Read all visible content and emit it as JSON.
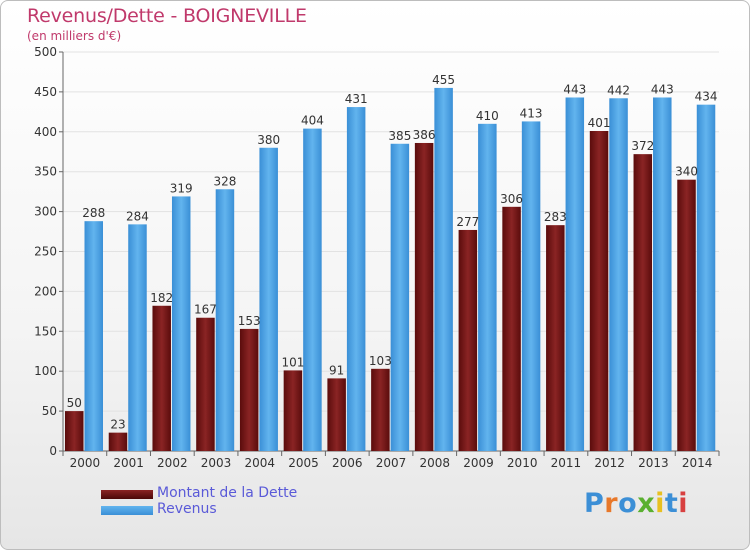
{
  "header": {
    "title": "Revenus/Dette - BOIGNEVILLE",
    "subtitle": "(en milliers d'€)"
  },
  "legend": {
    "items": [
      {
        "label": "Montant de la Dette",
        "color": "#7a1a1a"
      },
      {
        "label": "Revenus",
        "color": "#4aa3e6"
      }
    ]
  },
  "logo": {
    "letters": [
      "P",
      "r",
      "o",
      "x",
      "i",
      "t",
      "i"
    ],
    "colors": [
      "#3c8fd6",
      "#e8782a",
      "#3c8fd6",
      "#5ab030",
      "#e8c020",
      "#3c8fd6",
      "#d84040"
    ]
  },
  "chart_data": {
    "type": "bar",
    "categories": [
      "2000",
      "2001",
      "2002",
      "2003",
      "2004",
      "2005",
      "2006",
      "2007",
      "2008",
      "2009",
      "2010",
      "2011",
      "2012",
      "2013",
      "2014"
    ],
    "series": [
      {
        "name": "Montant de la Dette",
        "values": [
          50,
          23,
          182,
          167,
          153,
          101,
          91,
          103,
          386,
          277,
          306,
          283,
          401,
          372,
          340
        ],
        "color": "#7a1a1a"
      },
      {
        "name": "Revenus",
        "values": [
          288,
          284,
          319,
          328,
          380,
          404,
          431,
          385,
          455,
          410,
          413,
          443,
          442,
          443,
          434
        ],
        "color": "#4aa3e6"
      }
    ],
    "yticks": [
      0,
      50,
      100,
      150,
      200,
      250,
      300,
      350,
      400,
      450,
      500
    ],
    "ylim": [
      0,
      500
    ],
    "grid": true,
    "legend_position": "bottom-left"
  }
}
